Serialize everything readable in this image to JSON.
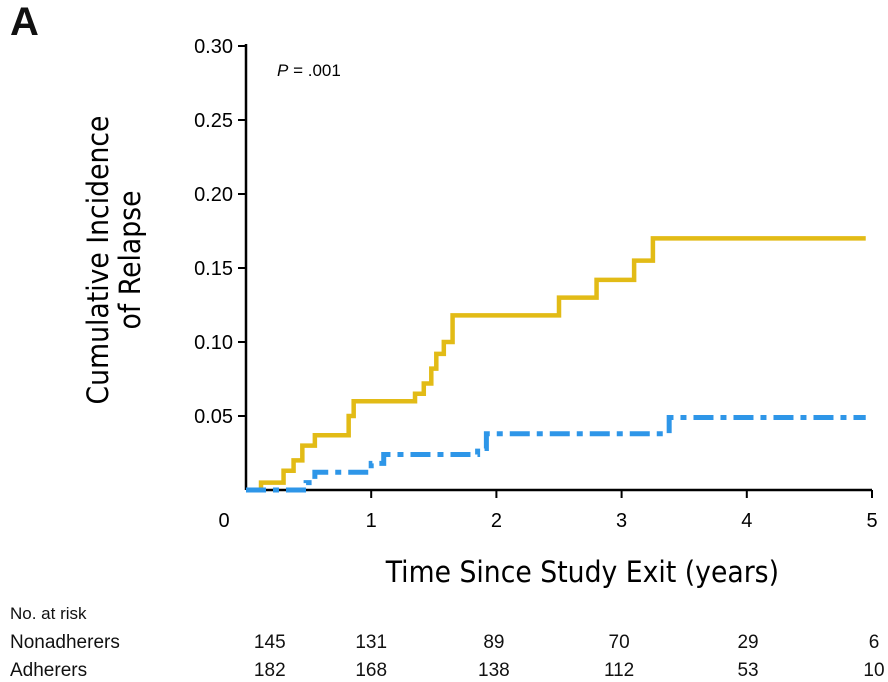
{
  "panel_label": "A",
  "chart_data": {
    "type": "line",
    "title": "",
    "xlabel": "Time Since Study Exit (years)",
    "ylabel_lines": [
      "Cumulative Incidence",
      "of Relapse"
    ],
    "annotation": {
      "italic": "P",
      "rest": " = .001"
    },
    "xlim": [
      0,
      5
    ],
    "ylim": [
      0,
      0.3
    ],
    "x_ticks": [
      0,
      1,
      2,
      3,
      4,
      5
    ],
    "x_tick_labels": [
      "0",
      "1",
      "2",
      "3",
      "4",
      "5"
    ],
    "y_ticks": [
      0.05,
      0.1,
      0.15,
      0.2,
      0.25,
      0.3
    ],
    "y_tick_labels": [
      "0.05",
      "0.10",
      "0.15",
      "0.20",
      "0.25",
      "0.30"
    ],
    "grid": false,
    "series": [
      {
        "line_style": "solid",
        "color": "#e2bb16",
        "step": true,
        "points": [
          [
            0.08,
            0.0
          ],
          [
            0.12,
            0.005
          ],
          [
            0.3,
            0.013
          ],
          [
            0.38,
            0.02
          ],
          [
            0.45,
            0.03
          ],
          [
            0.55,
            0.037
          ],
          [
            0.82,
            0.05
          ],
          [
            0.86,
            0.06
          ],
          [
            1.35,
            0.065
          ],
          [
            1.42,
            0.072
          ],
          [
            1.48,
            0.082
          ],
          [
            1.52,
            0.092
          ],
          [
            1.58,
            0.1
          ],
          [
            1.65,
            0.118
          ],
          [
            2.5,
            0.13
          ],
          [
            2.8,
            0.142
          ],
          [
            3.1,
            0.155
          ],
          [
            3.25,
            0.17
          ],
          [
            4.95,
            0.17
          ]
        ]
      },
      {
        "line_style": "dashed",
        "color": "#2e96e8",
        "step": true,
        "points": [
          [
            0.0,
            0.0
          ],
          [
            0.48,
            0.005
          ],
          [
            0.55,
            0.012
          ],
          [
            1.0,
            0.018
          ],
          [
            1.1,
            0.024
          ],
          [
            1.4,
            0.024
          ],
          [
            1.85,
            0.028
          ],
          [
            1.92,
            0.038
          ],
          [
            3.38,
            0.049
          ],
          [
            4.95,
            0.049
          ]
        ]
      }
    ],
    "at_risk": {
      "title": "No. at risk",
      "x": [
        0.19,
        1.0,
        1.98,
        2.98,
        4.01,
        5.0
      ],
      "rows": [
        {
          "label": "Nonadherers",
          "values": [
            "145",
            "131",
            "89",
            "70",
            "29",
            "6"
          ]
        },
        {
          "label": "Adherers",
          "values": [
            "182",
            "168",
            "138",
            "112",
            "53",
            "10"
          ]
        }
      ]
    }
  }
}
